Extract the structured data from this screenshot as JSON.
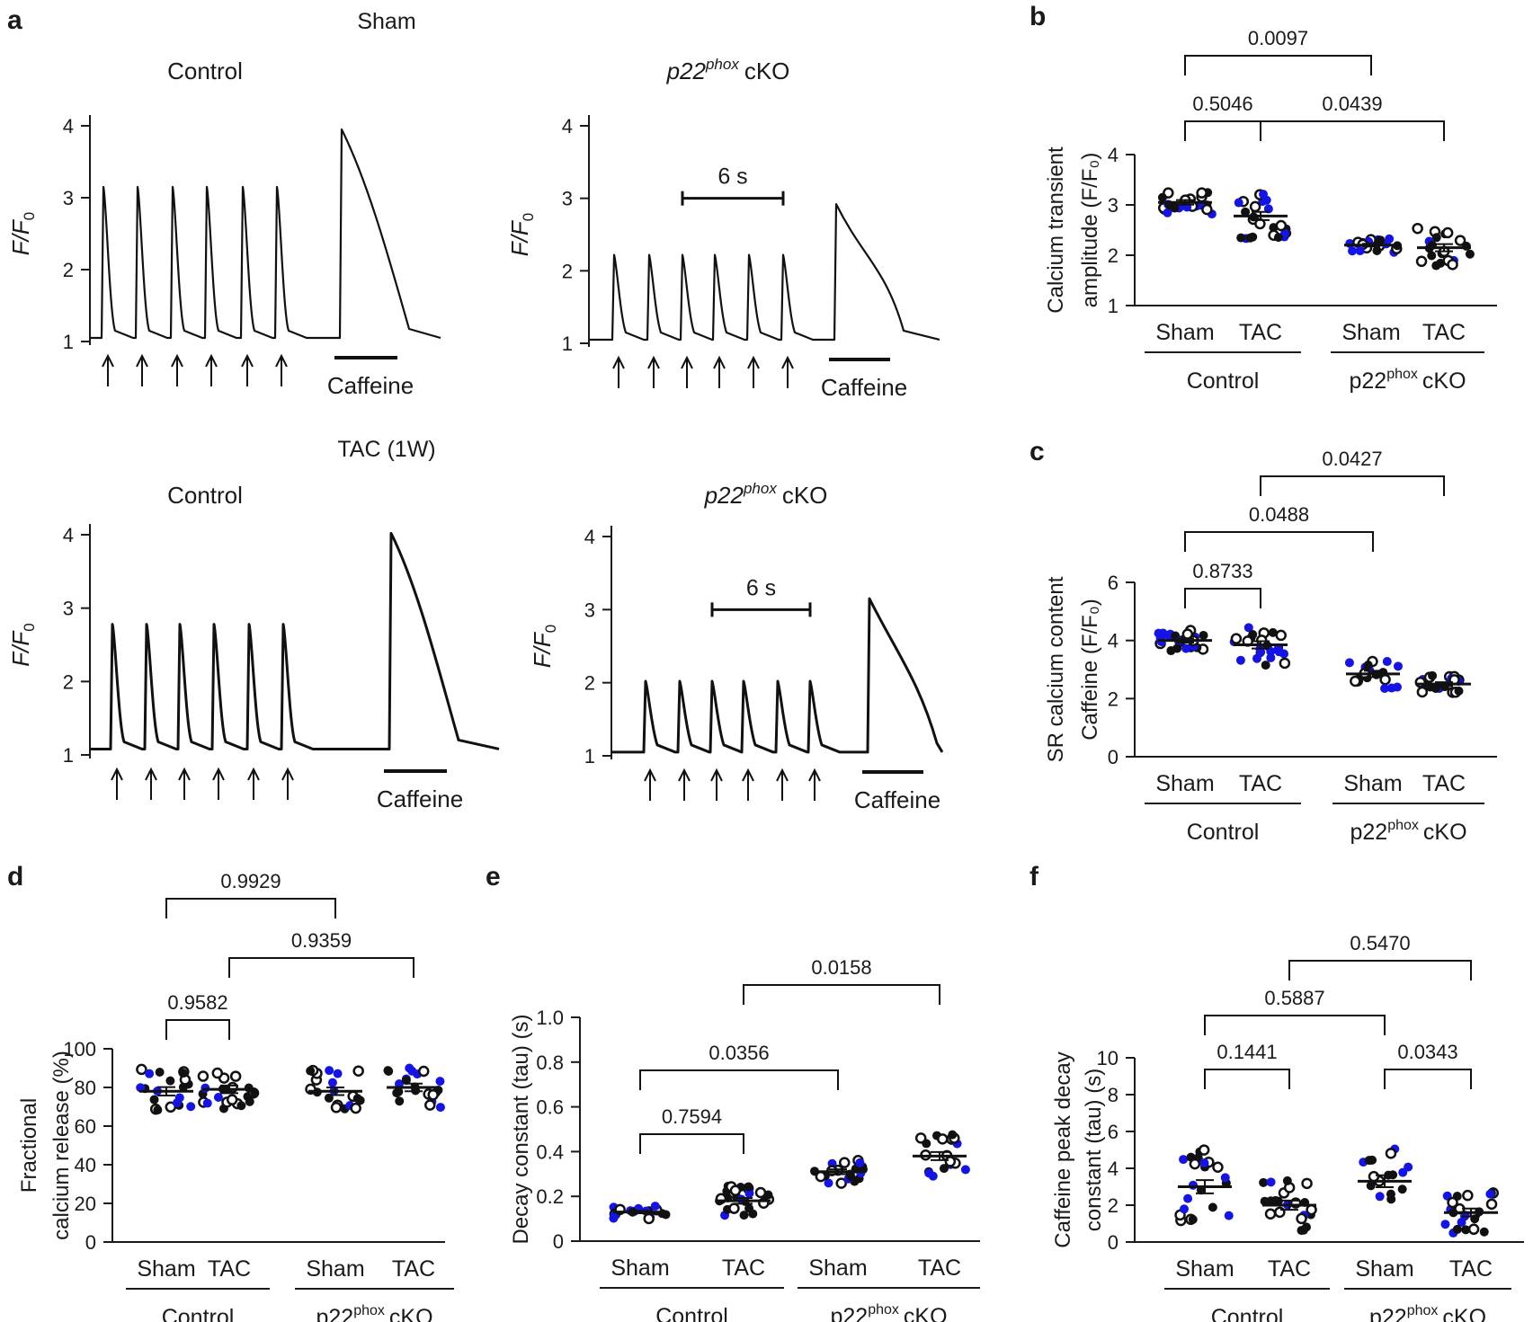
{
  "figure": {
    "panel_labels": [
      "a",
      "b",
      "c",
      "d",
      "e",
      "f"
    ],
    "section_labels": {
      "sham": "Sham",
      "tac": "TAC (1W)"
    },
    "trace_titles": {
      "control": "Control",
      "cko_gene": "p22",
      "cko_sup": "phox",
      "cko_suffix": "cKO"
    },
    "trace_labels": {
      "ylabel_main": "F/F",
      "ylabel_sub": "0",
      "caffeine": "Caffeine",
      "scale": "6 s"
    },
    "group_labels": {
      "control": "Control",
      "cko_main": "p22",
      "cko_sup": "phox",
      "cko_suffix": "cKO"
    },
    "colors": {
      "filled": "#111111",
      "blue": "#1414e6",
      "open": "#111111",
      "axis": "#1a1a1a"
    }
  },
  "chart_data": [
    {
      "id": "a",
      "type": "line",
      "title": "Sham / Control",
      "yticks": [
        1,
        2,
        3,
        4
      ],
      "ylim": [
        1,
        4
      ],
      "baseline": 1.05,
      "transient_peak": 3.15,
      "caffeine_peak": 3.95,
      "stimuli": 6
    },
    {
      "id": "a2",
      "type": "line",
      "title": "Sham / p22phox cKO",
      "yticks": [
        1,
        2,
        3,
        4
      ],
      "ylim": [
        1,
        4
      ],
      "baseline": 1.05,
      "transient_peak": 2.22,
      "caffeine_peak": 2.92,
      "stimuli": 6
    },
    {
      "id": "a3",
      "type": "line",
      "title": "TAC (1W) / Control",
      "yticks": [
        1,
        2,
        3,
        4
      ],
      "ylim": [
        1,
        4
      ],
      "baseline": 1.08,
      "transient_peak": 2.78,
      "caffeine_peak": 4.02,
      "stimuli": 6
    },
    {
      "id": "a4",
      "type": "line",
      "title": "TAC (1W) / p22phox cKO",
      "yticks": [
        1,
        2,
        3,
        4
      ],
      "ylim": [
        1,
        4
      ],
      "baseline": 1.05,
      "transient_peak": 2.02,
      "caffeine_peak": 3.15,
      "stimuli": 6
    },
    {
      "id": "b",
      "type": "scatter",
      "ylabel_lines": [
        "Calcium transient",
        "amplitude (F/F₀)"
      ],
      "ylim": [
        1,
        4
      ],
      "yticks": [
        1,
        2,
        3,
        4
      ],
      "categories": [
        "Sham",
        "TAC",
        "Sham",
        "TAC"
      ],
      "means": [
        3.05,
        2.78,
        2.2,
        2.15
      ],
      "spread": [
        0.25,
        0.45,
        0.15,
        0.4
      ],
      "counts": [
        24,
        24,
        18,
        20
      ],
      "brackets": [
        {
          "from": 0,
          "to": 2,
          "label": "0.0097"
        },
        {
          "from": 0,
          "to": 1,
          "label": "0.5046"
        },
        {
          "from": 1,
          "to": 3,
          "label": "0.0439"
        }
      ]
    },
    {
      "id": "c",
      "type": "scatter",
      "ylabel_lines": [
        "SR calcium content",
        "Caffeine (F/F₀)"
      ],
      "ylim": [
        0,
        6
      ],
      "yticks": [
        0,
        2,
        4,
        6
      ],
      "categories": [
        "Sham",
        "TAC",
        "Sham",
        "TAC"
      ],
      "means": [
        4.0,
        3.85,
        2.85,
        2.5
      ],
      "spread": [
        0.4,
        0.7,
        0.6,
        0.35
      ],
      "counts": [
        24,
        24,
        18,
        20
      ],
      "brackets": [
        {
          "from": 1,
          "to": 3,
          "label": "0.0427"
        },
        {
          "from": 0,
          "to": 2,
          "label": "0.0488"
        },
        {
          "from": 0,
          "to": 1,
          "label": "0.8733"
        }
      ]
    },
    {
      "id": "d",
      "type": "scatter",
      "ylabel_lines": [
        "Fractional",
        "calcium release (%)"
      ],
      "ylim": [
        0,
        100
      ],
      "yticks": [
        0,
        20,
        40,
        60,
        80,
        100
      ],
      "categories": [
        "Sham",
        "TAC",
        "Sham",
        "TAC"
      ],
      "means": [
        78,
        79,
        78,
        80
      ],
      "spread": [
        12,
        11,
        11,
        11
      ],
      "counts": [
        20,
        22,
        20,
        22
      ],
      "brackets": [
        {
          "from": 0,
          "to": 2,
          "label": "0.9929"
        },
        {
          "from": 1,
          "to": 3,
          "label": "0.9359"
        },
        {
          "from": 0,
          "to": 1,
          "label": "0.9582"
        }
      ]
    },
    {
      "id": "e",
      "type": "scatter",
      "ylabel_lines": [
        "Decay constant (tau) (s)"
      ],
      "ylim": [
        0,
        1.0
      ],
      "yticks": [
        0,
        0.2,
        0.4,
        0.6,
        0.8,
        1.0
      ],
      "categories": [
        "Sham",
        "TAC",
        "Sham",
        "TAC"
      ],
      "means": [
        0.13,
        0.18,
        0.31,
        0.38
      ],
      "spread": [
        0.03,
        0.07,
        0.06,
        0.1
      ],
      "counts": [
        18,
        24,
        20,
        18
      ],
      "brackets": [
        {
          "from": 1,
          "to": 3,
          "label": "0.0158"
        },
        {
          "from": 0,
          "to": 2,
          "label": "0.0356"
        },
        {
          "from": 0,
          "to": 1,
          "label": "0.7594"
        }
      ]
    },
    {
      "id": "f",
      "type": "scatter",
      "ylabel_lines": [
        "Caffeine peak decay",
        "constant (tau) (s)"
      ],
      "ylim": [
        0,
        10
      ],
      "yticks": [
        0,
        2,
        4,
        6,
        8,
        10
      ],
      "categories": [
        "Sham",
        "TAC",
        "Sham",
        "TAC"
      ],
      "means": [
        3.0,
        2.0,
        3.3,
        1.6
      ],
      "spread": [
        2.0,
        1.4,
        1.8,
        1.2
      ],
      "counts": [
        22,
        22,
        16,
        22
      ],
      "brackets": [
        {
          "from": 1,
          "to": 3,
          "label": "0.5470"
        },
        {
          "from": 0,
          "to": 2,
          "label": "0.5887"
        },
        {
          "from": 0,
          "to": 1,
          "label": "0.1441"
        },
        {
          "from": 2,
          "to": 3,
          "label": "0.0343"
        }
      ]
    }
  ]
}
